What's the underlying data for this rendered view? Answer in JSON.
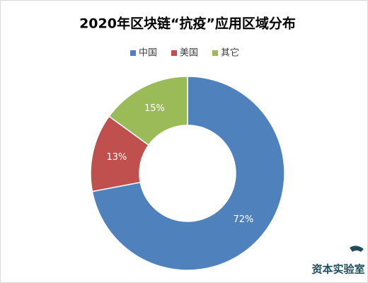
{
  "chart_data": {
    "type": "donut",
    "title": "2020年区块链“抗疫”应用区域分布",
    "categories": [
      "中国",
      "美国",
      "其它"
    ],
    "values": [
      72,
      13,
      15
    ],
    "value_labels": [
      "72%",
      "13%",
      "15%"
    ],
    "colors": [
      "#4f81bd",
      "#c0504d",
      "#9bbb59"
    ],
    "legend": "top",
    "annotation": "资本实验室"
  }
}
